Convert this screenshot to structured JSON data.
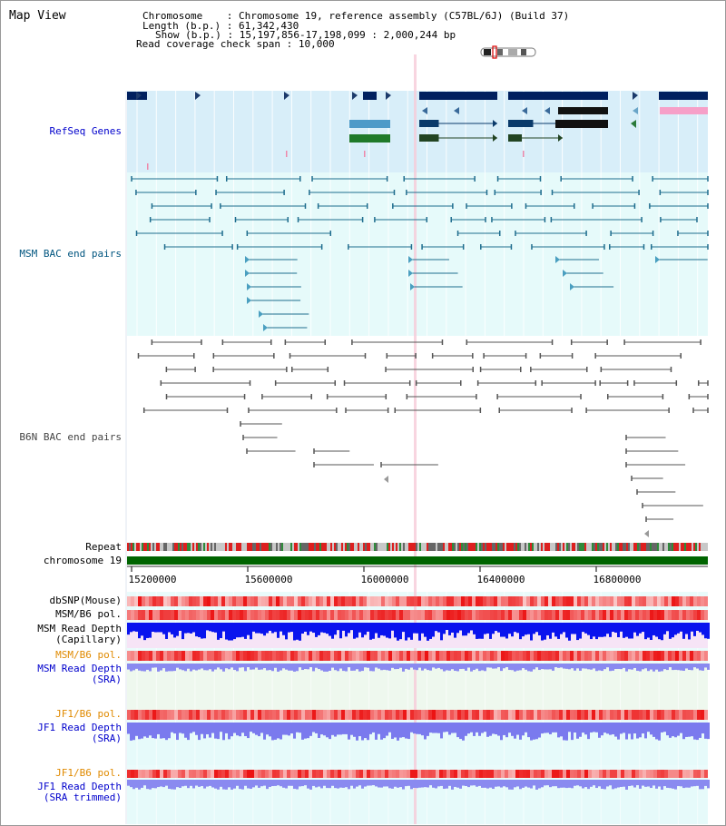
{
  "page": {
    "title": "Map View",
    "info": {
      "chromosome_label": "Chromosome",
      "chromosome_value": "Chromosome 19, reference assembly (C57BL/6J) (Build 37)",
      "length_label": "Length (b.p.)",
      "length_value": "61,342,430",
      "show_label": "Show (b.p.)",
      "show_value": "15,197,856-17,198,099 : 2,000,244 bp",
      "coverage_label": "Read coverage check span",
      "coverage_value": "10,000"
    }
  },
  "tracks": {
    "refseq": {
      "label": "RefSeq Genes",
      "color": "#0000cc"
    },
    "msm_bac": {
      "label": "MSM BAC end pairs",
      "color": "#00557f"
    },
    "b6n_bac": {
      "label": "B6N BAC end pairs",
      "color": "#444444"
    },
    "repeat": {
      "label": "Repeat"
    },
    "chromosome": {
      "label": "chromosome 19",
      "color": "#006400"
    },
    "dbsnp": {
      "label": "dbSNP(Mouse)"
    },
    "msm_b6_pol_1": {
      "label": "MSM/B6 pol."
    },
    "msm_read_depth_cap": {
      "label_line1": "MSM Read Depth",
      "label_line2": "(Capillary)"
    },
    "msm_b6_pol_2": {
      "label": "MSM/B6 pol.",
      "color": "#e08a00"
    },
    "msm_read_depth_sra": {
      "label_line1": "MSM Read Depth",
      "label_line2": "(SRA)",
      "color": "#0000cc"
    },
    "jf1_b6_pol_1": {
      "label": "JF1/B6 pol.",
      "color": "#e08a00"
    },
    "jf1_read_depth_sra": {
      "label_line1": "JF1 Read Depth",
      "label_line2": "(SRA)",
      "color": "#0000cc"
    },
    "jf1_b6_pol_2": {
      "label": "JF1/B6 pol.",
      "color": "#e08a00"
    },
    "jf1_read_depth_trim": {
      "label_line1": "JF1 Read Depth",
      "label_line2": "(SRA trimmed)",
      "color": "#0000cc"
    }
  },
  "axis": {
    "ticks": [
      "15200000",
      "15600000",
      "16000000",
      "16400000",
      "16800000"
    ]
  }
}
